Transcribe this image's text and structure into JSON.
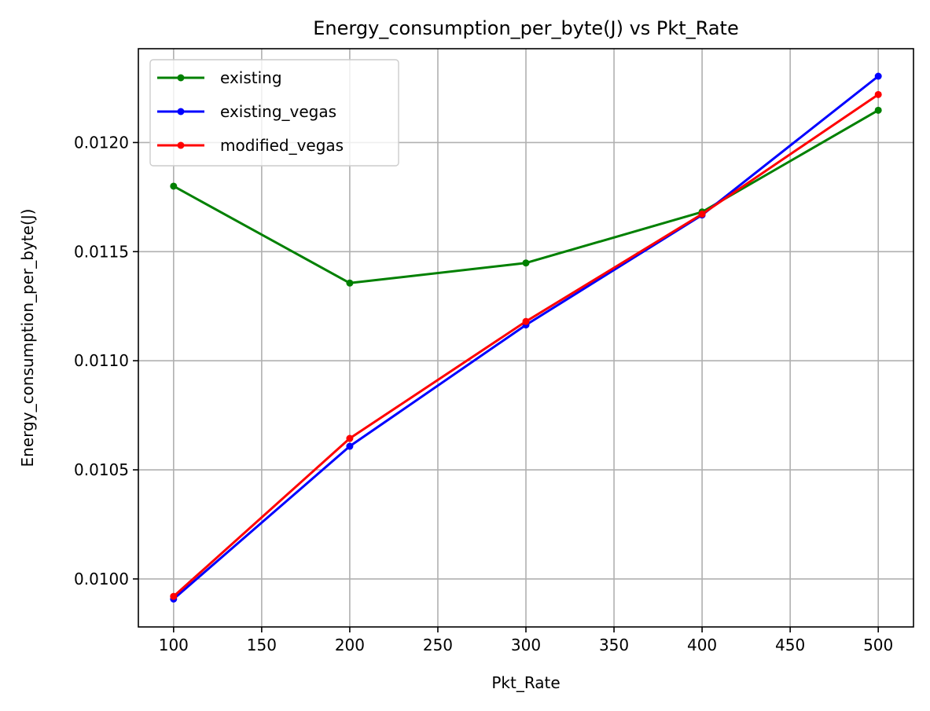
{
  "chart_data": {
    "type": "line",
    "title": "Energy_consumption_per_byte(J) vs Pkt_Rate",
    "xlabel": "Pkt_Rate",
    "ylabel": "Energy_consumption_per_byte(J)",
    "x": [
      100,
      200,
      300,
      400,
      500
    ],
    "xlim": [
      80,
      520
    ],
    "ylim": [
      0.00978,
      0.01243
    ],
    "xticks": [
      100,
      150,
      200,
      250,
      300,
      350,
      400,
      450,
      500
    ],
    "xtick_labels": [
      "100",
      "150",
      "200",
      "250",
      "300",
      "350",
      "400",
      "450",
      "500"
    ],
    "yticks": [
      0.01,
      0.0105,
      0.011,
      0.0115,
      0.012
    ],
    "ytick_labels": [
      "0.0100",
      "0.0105",
      "0.0110",
      "0.0115",
      "0.0120"
    ],
    "grid": true,
    "legend_position": "top-left",
    "series": [
      {
        "name": "existing",
        "color": "#008000",
        "values": [
          0.0118,
          0.011356,
          0.011448,
          0.011682,
          0.012148
        ]
      },
      {
        "name": "existing_vegas",
        "color": "#0000ff",
        "values": [
          0.009908,
          0.010608,
          0.011164,
          0.011668,
          0.012304
        ]
      },
      {
        "name": "modified_vegas",
        "color": "#ff0000",
        "values": [
          0.00992,
          0.010644,
          0.01118,
          0.011672,
          0.01222
        ]
      }
    ]
  }
}
